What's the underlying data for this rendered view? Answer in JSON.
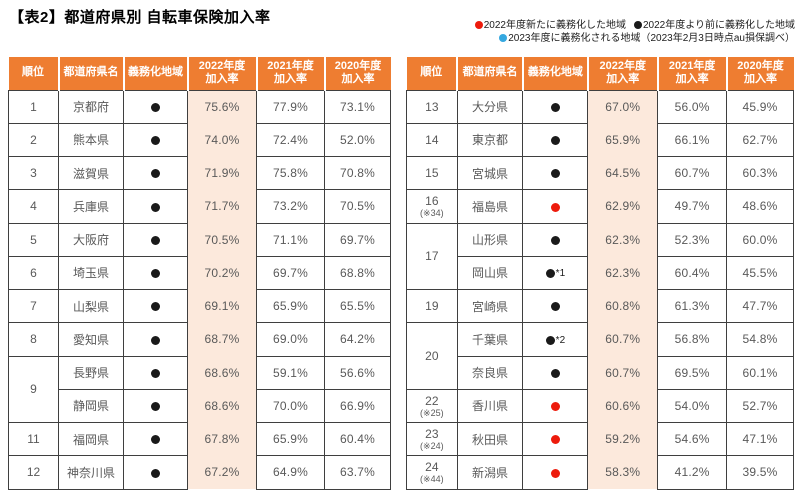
{
  "title": "【表2】都道府県別 自転車保険加入率",
  "legend": {
    "lines": [
      [
        {
          "dot": "red",
          "label": "2022年度新たに義務化した地域"
        },
        {
          "dot": "black",
          "label": "2022年度より前に義務化した地域"
        }
      ],
      [
        {
          "dot": "blue",
          "label": "2023年度に義務化される地域"
        }
      ]
    ],
    "note": "（2023年2月3日時点au損保調べ）"
  },
  "columns": [
    {
      "label": "順位"
    },
    {
      "label": "都道府県名"
    },
    {
      "label": "義務化地域"
    },
    {
      "label": "2022年度",
      "sub": "加入率",
      "highlight": true
    },
    {
      "label": "2021年度",
      "sub": "加入率"
    },
    {
      "label": "2020年度",
      "sub": "加入率"
    }
  ],
  "colors": {
    "header_bg": "#ee7d31",
    "highlight_bg": "#fce9dc",
    "border": "#3f3f3f",
    "dot_black": "#1a1a1a",
    "dot_red": "#ed1b0c",
    "dot_blue": "#35a8e0"
  },
  "tables": [
    {
      "id": "left",
      "rows": [
        {
          "rank": "1",
          "pref": "京都府",
          "dot": "black",
          "y2022": "75.6%",
          "y2021": "77.9%",
          "y2020": "73.1%"
        },
        {
          "rank": "2",
          "pref": "熊本県",
          "dot": "black",
          "y2022": "74.0%",
          "y2021": "72.4%",
          "y2020": "52.0%"
        },
        {
          "rank": "3",
          "pref": "滋賀県",
          "dot": "black",
          "y2022": "71.9%",
          "y2021": "75.8%",
          "y2020": "70.8%"
        },
        {
          "rank": "4",
          "pref": "兵庫県",
          "dot": "black",
          "y2022": "71.7%",
          "y2021": "73.2%",
          "y2020": "70.5%"
        },
        {
          "rank": "5",
          "pref": "大阪府",
          "dot": "black",
          "y2022": "70.5%",
          "y2021": "71.1%",
          "y2020": "69.7%"
        },
        {
          "rank": "6",
          "pref": "埼玉県",
          "dot": "black",
          "y2022": "70.2%",
          "y2021": "69.7%",
          "y2020": "68.8%"
        },
        {
          "rank": "7",
          "pref": "山梨県",
          "dot": "black",
          "y2022": "69.1%",
          "y2021": "65.9%",
          "y2020": "65.5%"
        },
        {
          "rank": "8",
          "pref": "愛知県",
          "dot": "black",
          "y2022": "68.7%",
          "y2021": "69.0%",
          "y2020": "64.2%"
        },
        {
          "rank": "9",
          "rank_span": 2,
          "pref": "長野県",
          "dot": "black",
          "y2022": "68.6%",
          "y2021": "59.1%",
          "y2020": "56.6%"
        },
        {
          "rank": null,
          "pref": "静岡県",
          "dot": "black",
          "y2022": "68.6%",
          "y2021": "70.0%",
          "y2020": "66.9%"
        },
        {
          "rank": "11",
          "pref": "福岡県",
          "dot": "black",
          "y2022": "67.8%",
          "y2021": "65.9%",
          "y2020": "60.4%"
        },
        {
          "rank": "12",
          "pref": "神奈川県",
          "dot": "black",
          "y2022": "67.2%",
          "y2021": "64.9%",
          "y2020": "63.7%"
        }
      ]
    },
    {
      "id": "right",
      "rows": [
        {
          "rank": "13",
          "pref": "大分県",
          "dot": "black",
          "y2022": "67.0%",
          "y2021": "56.0%",
          "y2020": "45.9%"
        },
        {
          "rank": "14",
          "pref": "東京都",
          "dot": "black",
          "y2022": "65.9%",
          "y2021": "66.1%",
          "y2020": "62.7%"
        },
        {
          "rank": "15",
          "pref": "宮城県",
          "dot": "black",
          "y2022": "64.5%",
          "y2021": "60.7%",
          "y2020": "60.3%"
        },
        {
          "rank": "16",
          "rank_note": "(※34)",
          "pref": "福島県",
          "dot": "red",
          "y2022": "62.9%",
          "y2021": "49.7%",
          "y2020": "48.6%"
        },
        {
          "rank": "17",
          "rank_span": 2,
          "pref": "山形県",
          "dot": "black",
          "y2022": "62.3%",
          "y2021": "52.3%",
          "y2020": "60.0%"
        },
        {
          "rank": null,
          "pref": "岡山県",
          "dot": "black",
          "dot_suffix": "*1",
          "y2022": "62.3%",
          "y2021": "60.4%",
          "y2020": "45.5%"
        },
        {
          "rank": "19",
          "pref": "宮崎県",
          "dot": "black",
          "y2022": "60.8%",
          "y2021": "61.3%",
          "y2020": "47.7%"
        },
        {
          "rank": "20",
          "rank_span": 2,
          "pref": "千葉県",
          "dot": "black",
          "dot_suffix": "*2",
          "y2022": "60.7%",
          "y2021": "56.8%",
          "y2020": "54.8%"
        },
        {
          "rank": null,
          "pref": "奈良県",
          "dot": "black",
          "y2022": "60.7%",
          "y2021": "69.5%",
          "y2020": "60.1%"
        },
        {
          "rank": "22",
          "rank_note": "(※25)",
          "pref": "香川県",
          "dot": "red",
          "y2022": "60.6%",
          "y2021": "54.0%",
          "y2020": "52.7%"
        },
        {
          "rank": "23",
          "rank_note": "(※24)",
          "pref": "秋田県",
          "dot": "red",
          "y2022": "59.2%",
          "y2021": "54.6%",
          "y2020": "47.1%"
        },
        {
          "rank": "24",
          "rank_note": "(※44)",
          "pref": "新潟県",
          "dot": "red",
          "y2022": "58.3%",
          "y2021": "41.2%",
          "y2020": "39.5%"
        }
      ]
    }
  ]
}
